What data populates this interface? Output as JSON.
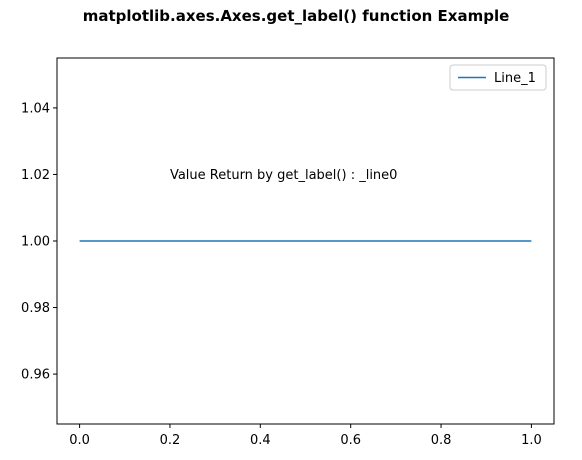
{
  "chart_data": {
    "type": "line",
    "title": "matplotlib.axes.Axes.get_label() function Example",
    "xlabel": "",
    "ylabel": "",
    "xlim": [
      -0.05,
      1.05
    ],
    "ylim": [
      0.945,
      1.055
    ],
    "xticks": [
      "0.0",
      "0.2",
      "0.4",
      "0.6",
      "0.8",
      "1.0"
    ],
    "xtick_values": [
      0.0,
      0.2,
      0.4,
      0.6,
      0.8,
      1.0
    ],
    "yticks": [
      "0.96",
      "0.98",
      "1.00",
      "1.02",
      "1.04"
    ],
    "ytick_values": [
      0.96,
      0.98,
      1.0,
      1.02,
      1.04
    ],
    "grid": false,
    "legend_position": "upper right",
    "series": [
      {
        "name": "Line_1",
        "color": "#1f77b4",
        "x": [
          0.0,
          1.0
        ],
        "y": [
          1.0,
          1.0
        ]
      }
    ],
    "annotations": [
      {
        "text": "Value Return by get_label() : _line0",
        "x": 0.2,
        "y": 1.02
      }
    ]
  }
}
